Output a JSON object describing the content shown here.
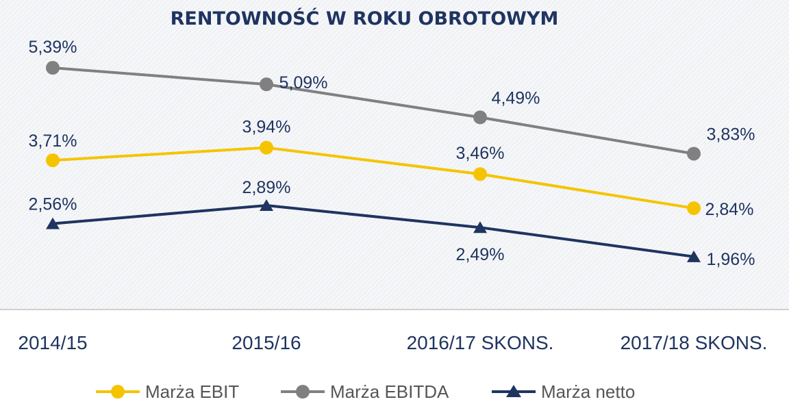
{
  "chart_data": {
    "type": "line",
    "title": "RENTOWNOŚĆ W ROKU OBROTOWYM",
    "categories": [
      "2014/15",
      "2015/16",
      "2016/17 SKONS.",
      "2017/18 SKONS."
    ],
    "ylim": [
      1.0,
      6.0
    ],
    "grid": false,
    "legend_position": "bottom",
    "series": [
      {
        "name": "Marża EBIT",
        "values": [
          3.71,
          3.94,
          3.46,
          2.84
        ],
        "labels": [
          "3,71%",
          "3,94%",
          "3,46%",
          "2,84%"
        ],
        "color": "#f5c400",
        "marker": "circle"
      },
      {
        "name": "Marża EBITDA",
        "values": [
          5.39,
          5.09,
          4.49,
          3.83
        ],
        "labels": [
          "5,39%",
          "5,09%",
          "4,49%",
          "3,83%"
        ],
        "color": "#808080",
        "marker": "circle"
      },
      {
        "name": "Marża netto",
        "values": [
          2.56,
          2.89,
          2.49,
          1.96
        ],
        "labels": [
          "2,56%",
          "2,89%",
          "2,49%",
          "1,96%"
        ],
        "color": "#1f3460",
        "marker": "triangle"
      }
    ]
  }
}
